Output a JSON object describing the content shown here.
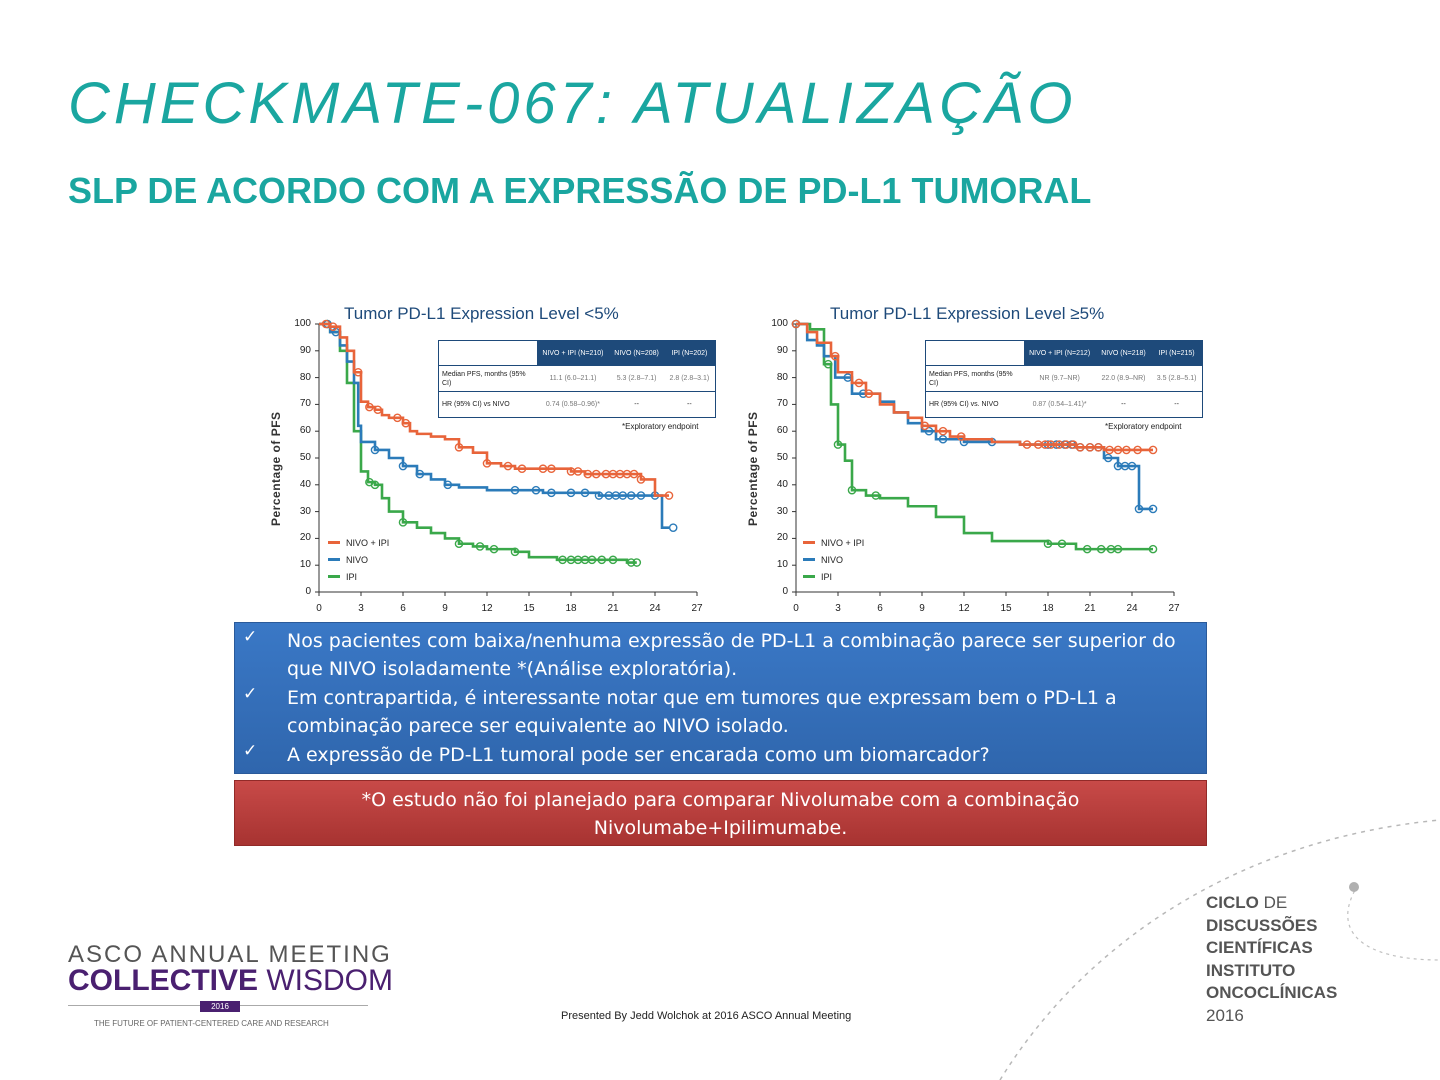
{
  "slide": {
    "title": "CHECKMATE-067: ATUALIZAÇÃO",
    "subtitle": "SLP DE ACORDO COM A EXPRESSÃO DE PD-L1 TUMORAL"
  },
  "colors": {
    "nivo_ipi": "#e8643a",
    "nivo": "#2b7bb9",
    "ipi": "#3aa84a",
    "title_teal": "#1aa6a0",
    "table_header": "#1e4a7a"
  },
  "chart_data": [
    {
      "type": "line",
      "title": "Tumor PD-L1 Expression Level <5%",
      "ylabel": "Percentage of PFS",
      "xlabel": "",
      "xlim": [
        0,
        27
      ],
      "ylim": [
        0,
        100
      ],
      "xticks": [
        "0",
        "3",
        "6",
        "9",
        "12",
        "15",
        "18",
        "21",
        "24",
        "27"
      ],
      "yticks": [
        "0",
        "10",
        "20",
        "30",
        "40",
        "50",
        "60",
        "70",
        "80",
        "90",
        "100"
      ],
      "legend_position": "bottom-left",
      "table": {
        "headers": [
          "NIVO + IPI (N=210)",
          "NIVO (N=208)",
          "IPI (N=202)"
        ],
        "rows": [
          {
            "label": "Median PFS, months (95% CI)",
            "values": [
              "11.1 (6.0–21.1)",
              "5.3 (2.8–7.1)",
              "2.8 (2.8–3.1)"
            ]
          },
          {
            "label": "HR (95% CI) vs NIVO",
            "values": [
              "0.74 (0.58–0.96)*",
              "--",
              "--"
            ]
          }
        ],
        "note": "*Exploratory endpoint"
      },
      "series": [
        {
          "name": "NIVO + IPI",
          "color_key": "nivo_ipi",
          "x": [
            0,
            0.8,
            1.5,
            2,
            2.5,
            3,
            3.5,
            4,
            4.5,
            5,
            6,
            6.5,
            7,
            8,
            9,
            10,
            11,
            12,
            13,
            14,
            15,
            16,
            17,
            18,
            19,
            20,
            21,
            22,
            23,
            24,
            25
          ],
          "y": [
            100,
            99,
            95,
            90,
            82,
            71,
            69,
            68,
            66,
            65,
            63,
            60,
            59,
            58,
            57,
            54,
            52,
            48,
            47,
            46,
            46,
            46,
            46,
            45,
            44,
            44,
            44,
            44,
            42,
            36,
            36
          ],
          "censor_x": [
            0.5,
            1,
            2.8,
            3.6,
            4.2,
            5.6,
            6.2,
            10,
            12,
            13.5,
            14.5,
            16,
            16.6,
            18,
            18.5,
            19.2,
            19.8,
            20.5,
            21,
            21.5,
            22,
            22.5,
            23,
            25
          ]
        },
        {
          "name": "NIVO",
          "color_key": "nivo",
          "x": [
            0,
            0.8,
            1.5,
            2,
            2.5,
            2.8,
            3,
            4,
            5,
            6,
            7,
            8,
            9,
            10,
            12,
            14,
            16,
            18,
            20,
            22,
            24,
            24.5,
            25
          ],
          "y": [
            100,
            97,
            92,
            86,
            78,
            62,
            56,
            53,
            50,
            47,
            44,
            42,
            40,
            39,
            38,
            38,
            37,
            37,
            36,
            36,
            36,
            24,
            24
          ],
          "censor_x": [
            0.6,
            1.2,
            4,
            6,
            7.2,
            9.2,
            14,
            15.5,
            16.6,
            18,
            19,
            20,
            20.7,
            21.2,
            21.7,
            22.3,
            23,
            24,
            25.3
          ]
        },
        {
          "name": "IPI",
          "color_key": "ipi",
          "x": [
            0,
            0.8,
            1.5,
            2,
            2.5,
            3,
            3.5,
            4,
            4.5,
            5,
            6,
            7,
            8,
            9,
            10,
            11,
            12,
            14,
            15,
            17,
            19,
            21,
            22,
            22.7
          ],
          "y": [
            100,
            97,
            90,
            78,
            60,
            45,
            41,
            40,
            35,
            30,
            26,
            24,
            22,
            20,
            18,
            17,
            16,
            15,
            13,
            12,
            12,
            12,
            11,
            11
          ],
          "censor_x": [
            0.6,
            3.6,
            4,
            6,
            10,
            11.5,
            12.5,
            14,
            17.4,
            18,
            18.5,
            19,
            19.5,
            20.2,
            21,
            22.3,
            22.7
          ]
        }
      ]
    },
    {
      "type": "line",
      "title": "Tumor PD-L1 Expression Level ≥5%",
      "ylabel": "Percentage of PFS",
      "xlabel": "",
      "xlim": [
        0,
        27
      ],
      "ylim": [
        0,
        100
      ],
      "xticks": [
        "0",
        "3",
        "6",
        "9",
        "12",
        "15",
        "18",
        "21",
        "24",
        "27"
      ],
      "yticks": [
        "0",
        "10",
        "20",
        "30",
        "40",
        "50",
        "60",
        "70",
        "80",
        "90",
        "100"
      ],
      "legend_position": "bottom-left",
      "table": {
        "headers": [
          "NIVO + IPI (N=212)",
          "NIVO (N=218)",
          "IPI (N=215)"
        ],
        "rows": [
          {
            "label": "Median PFS, months (95% CI)",
            "values": [
              "NR (9.7–NR)",
              "22.0 (8.9–NR)",
              "3.5 (2.8–5.1)"
            ]
          },
          {
            "label": "HR (95% CI) vs. NIVO",
            "values": [
              "0.87 (0.54–1.41)*",
              "--",
              "--"
            ]
          }
        ],
        "note": "*Exploratory endpoint"
      },
      "series": [
        {
          "name": "NIVO + IPI",
          "color_key": "nivo_ipi",
          "x": [
            0,
            0.8,
            1.5,
            2.5,
            3,
            4,
            5,
            6,
            7,
            8,
            9,
            10,
            11,
            12,
            14,
            16,
            18,
            20,
            22,
            24,
            25.5
          ],
          "y": [
            100,
            97,
            93,
            88,
            82,
            78,
            74,
            70,
            67,
            65,
            62,
            60,
            58,
            57,
            56,
            55,
            55,
            54,
            53,
            53,
            53
          ],
          "censor_x": [
            0,
            2.8,
            4.5,
            5.2,
            9.2,
            10.5,
            11.8,
            16.5,
            17.3,
            17.8,
            18.2,
            18.8,
            19.3,
            19.8,
            20.3,
            21,
            21.6,
            22.4,
            23,
            23.6,
            24.4,
            25.5
          ]
        },
        {
          "name": "NIVO",
          "color_key": "nivo",
          "x": [
            0,
            0.8,
            1.5,
            2,
            2.8,
            4,
            5,
            6,
            7,
            8,
            9,
            10,
            12,
            14,
            16,
            18,
            20,
            22,
            23,
            23.5,
            24,
            24.5,
            25.5
          ],
          "y": [
            100,
            94,
            92,
            88,
            80,
            74,
            74,
            71,
            67,
            63,
            60,
            57,
            56,
            56,
            55,
            55,
            54,
            50,
            47,
            47,
            47,
            31,
            31
          ],
          "censor_x": [
            0,
            3.7,
            4.8,
            9.5,
            10.5,
            12,
            14,
            18,
            18.6,
            19.2,
            19.7,
            20.3,
            21,
            21.6,
            22.3,
            23,
            23.5,
            24,
            24.5,
            25.5
          ]
        },
        {
          "name": "IPI",
          "color_key": "ipi",
          "x": [
            0,
            1,
            2,
            2.5,
            3,
            3.5,
            4,
            5,
            6,
            8,
            10,
            12,
            14,
            16,
            18,
            20,
            22,
            24,
            25.5
          ],
          "y": [
            100,
            98,
            85,
            70,
            55,
            49,
            38,
            36,
            35,
            32,
            28,
            22,
            19,
            19,
            18,
            16,
            16,
            16,
            16
          ],
          "censor_x": [
            0,
            2.3,
            3,
            4,
            5.7,
            18,
            19,
            20.8,
            21.8,
            22.5,
            23,
            25.5
          ]
        }
      ]
    }
  ],
  "bullets": [
    "Nos pacientes com baixa/nenhuma expressão de PD-L1  a combinação parece ser superior do que NIVO isoladamente *(Análise exploratória).",
    "Em contrapartida, é interessante notar que em tumores que expressam bem o PD-L1 a combinação parece ser equivalente ao NIVO isolado.",
    "A expressão de PD-L1 tumoral pode ser encarada como um biomarcador?"
  ],
  "check_glyph": "✓",
  "warning": "*O estudo não  foi planejado  para comparar Nivolumabe com a combinação Nivolumabe+Ipilimumabe.",
  "footer": {
    "asco_line1": "ASCO ANNUAL MEETING",
    "asco_line2_bold": "COLLECTIVE",
    "asco_line2_light": " WISDOM",
    "asco_year": "2016",
    "asco_tagline": "THE FUTURE OF PATIENT-CENTERED CARE AND RESEARCH",
    "presented": "Presented By Jedd Wolchok at 2016 ASCO Annual Meeting",
    "ciclo_1_bold": "CICLO",
    "ciclo_1_light": " DE",
    "ciclo_2": "DISCUSSÕES",
    "ciclo_3": "CIENTÍFICAS",
    "ciclo_4": "INSTITUTO",
    "ciclo_5": "ONCOCLÍNICAS",
    "ciclo_6": "2016"
  }
}
